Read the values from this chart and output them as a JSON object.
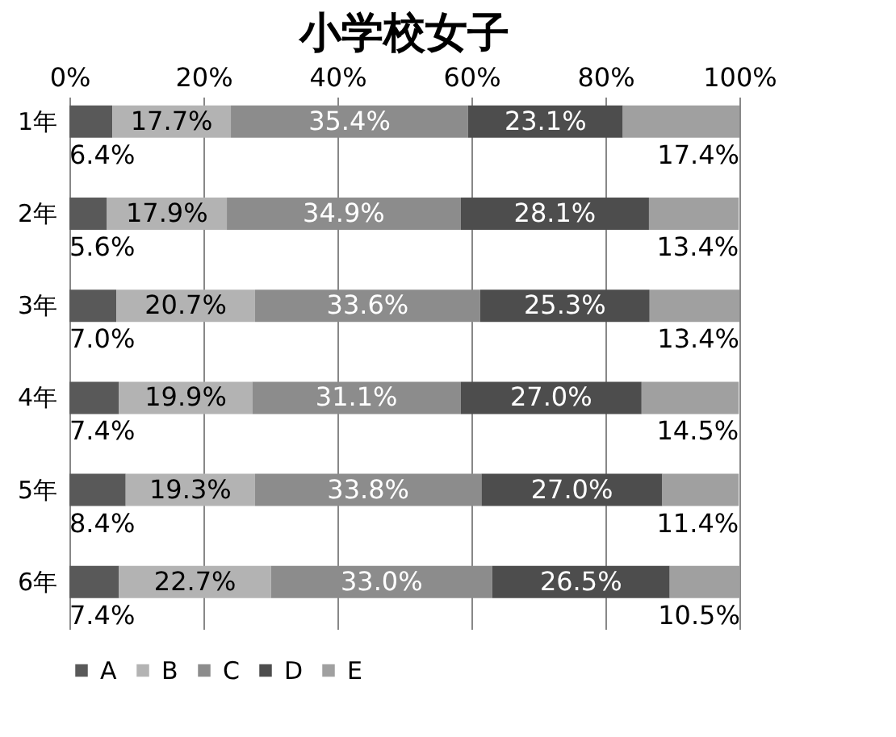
{
  "chart_data": {
    "type": "bar",
    "orientation": "horizontal",
    "stacked": true,
    "title": "小学校女子",
    "categories": [
      "1年",
      "2年",
      "3年",
      "4年",
      "5年",
      "6年"
    ],
    "series": [
      {
        "name": "A",
        "color": "#595959",
        "values": [
          6.4,
          5.6,
          7.0,
          7.4,
          8.4,
          7.4
        ],
        "value_labels": [
          "6.4%",
          "5.6%",
          "7.0%",
          "7.4%",
          "8.4%",
          "7.4%"
        ]
      },
      {
        "name": "B",
        "color": "#b3b3b3",
        "values": [
          17.7,
          17.9,
          20.7,
          19.9,
          19.3,
          22.7
        ],
        "value_labels": [
          "17.7%",
          "17.9%",
          "20.7%",
          "19.9%",
          "19.3%",
          "22.7%"
        ]
      },
      {
        "name": "C",
        "color": "#8c8c8c",
        "values": [
          35.4,
          34.9,
          33.6,
          31.1,
          33.8,
          33.0
        ],
        "value_labels": [
          "35.4%",
          "34.9%",
          "33.6%",
          "31.1%",
          "33.8%",
          "33.0%"
        ]
      },
      {
        "name": "D",
        "color": "#4d4d4d",
        "values": [
          23.1,
          28.1,
          25.3,
          27.0,
          27.0,
          26.5
        ],
        "value_labels": [
          "23.1%",
          "28.1%",
          "25.3%",
          "27.0%",
          "27.0%",
          "26.5%"
        ]
      },
      {
        "name": "E",
        "color": "#a0a0a0",
        "values": [
          17.4,
          13.4,
          13.4,
          14.5,
          11.4,
          10.5
        ],
        "value_labels": [
          "17.4%",
          "13.4%",
          "13.4%",
          "14.5%",
          "11.4%",
          "10.5%"
        ]
      }
    ],
    "xlim": [
      0,
      100
    ],
    "xticks": [
      {
        "value": 0,
        "label": "0%"
      },
      {
        "value": 20,
        "label": "20%"
      },
      {
        "value": 40,
        "label": "40%"
      },
      {
        "value": 60,
        "label": "60%"
      },
      {
        "value": 80,
        "label": "80%"
      },
      {
        "value": 100,
        "label": "100%"
      }
    ],
    "grid": "x",
    "legend": "bottom"
  }
}
